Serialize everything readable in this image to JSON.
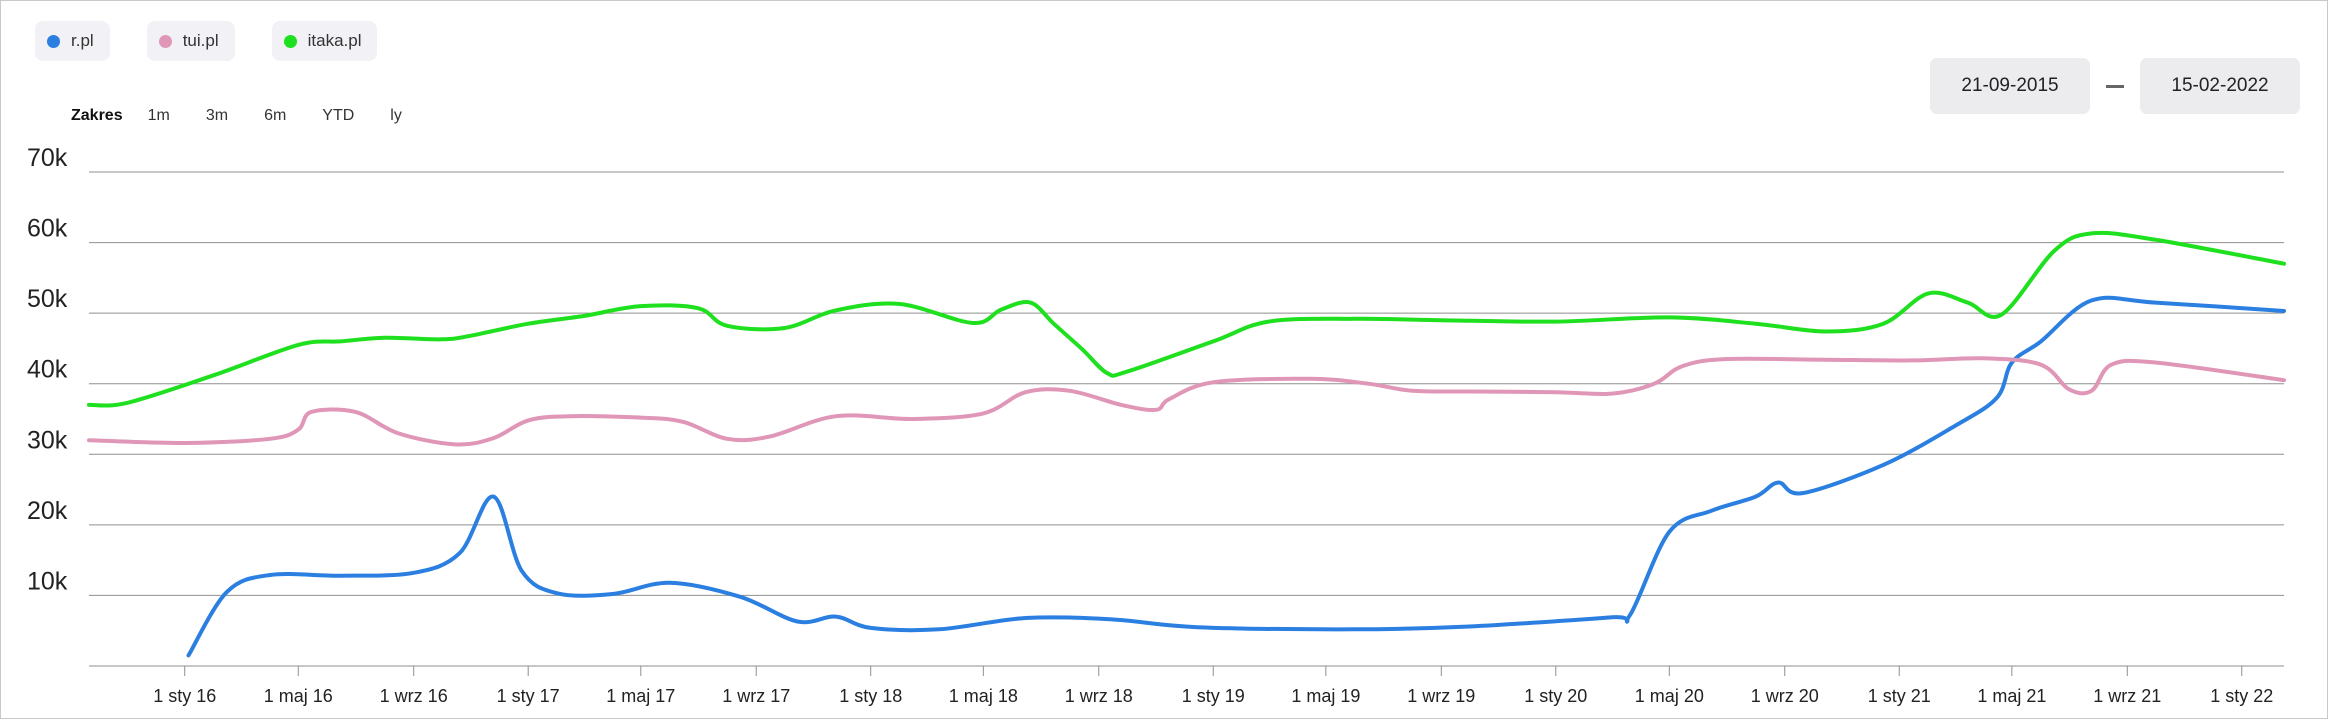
{
  "legend": [
    {
      "label": "r.pl",
      "color": "#2a7fe0"
    },
    {
      "label": "tui.pl",
      "color": "#e096b6"
    },
    {
      "label": "itaka.pl",
      "color": "#1ee01e"
    }
  ],
  "range_selector": {
    "label": "Zakres",
    "buttons": [
      "1m",
      "3m",
      "6m",
      "YTD",
      "ly"
    ]
  },
  "date_range": {
    "from": "21-09-2015",
    "to": "15-02-2022"
  },
  "chart_data": {
    "type": "line",
    "ylim": [
      0,
      70000
    ],
    "xlim": [
      "2015-09-21",
      "2022-02-15"
    ],
    "y_ticks": [
      {
        "value": 10000,
        "label": "10k"
      },
      {
        "value": 20000,
        "label": "20k"
      },
      {
        "value": 30000,
        "label": "30k"
      },
      {
        "value": 40000,
        "label": "40k"
      },
      {
        "value": 50000,
        "label": "50k"
      },
      {
        "value": 60000,
        "label": "60k"
      },
      {
        "value": 70000,
        "label": "70k"
      }
    ],
    "x_ticks": [
      {
        "date": "2016-01-01",
        "label": "1 sty 16"
      },
      {
        "date": "2016-05-01",
        "label": "1 maj 16"
      },
      {
        "date": "2016-09-01",
        "label": "1 wrz 16"
      },
      {
        "date": "2017-01-01",
        "label": "1 sty 17"
      },
      {
        "date": "2017-05-01",
        "label": "1 maj  17"
      },
      {
        "date": "2017-09-01",
        "label": "1 wrz  17"
      },
      {
        "date": "2018-01-01",
        "label": "1 sty  18"
      },
      {
        "date": "2018-05-01",
        "label": "1 maj  18"
      },
      {
        "date": "2018-09-01",
        "label": "1 wrz  18"
      },
      {
        "date": "2019-01-01",
        "label": "1 sty  19"
      },
      {
        "date": "2019-05-01",
        "label": "1 maj  19"
      },
      {
        "date": "2019-09-01",
        "label": "1 wrz  19"
      },
      {
        "date": "2020-01-01",
        "label": "1 sty  20"
      },
      {
        "date": "2020-05-01",
        "label": "1 maj  20"
      },
      {
        "date": "2020-09-01",
        "label": "1 wrz  20"
      },
      {
        "date": "2021-01-01",
        "label": "1 sty  21"
      },
      {
        "date": "2021-05-01",
        "label": "1 maj  21"
      },
      {
        "date": "2021-09-01",
        "label": "1 wrz  21"
      },
      {
        "date": "2022-01-01",
        "label": "1 sty  22"
      }
    ],
    "series": [
      {
        "name": "r.pl",
        "color": "#2a7fe0",
        "points": [
          [
            "2016-01-05",
            1500
          ],
          [
            "2016-02-15",
            10500
          ],
          [
            "2016-04-01",
            12900
          ],
          [
            "2016-06-15",
            12800
          ],
          [
            "2016-09-01",
            13200
          ],
          [
            "2016-10-20",
            16000
          ],
          [
            "2016-11-25",
            24000
          ],
          [
            "2016-12-25",
            13500
          ],
          [
            "2017-02-01",
            10300
          ],
          [
            "2017-04-01",
            10200
          ],
          [
            "2017-06-01",
            11800
          ],
          [
            "2017-08-15",
            9800
          ],
          [
            "2017-10-15",
            6300
          ],
          [
            "2017-11-25",
            7000
          ],
          [
            "2018-01-01",
            5400
          ],
          [
            "2018-03-15",
            5200
          ],
          [
            "2018-06-15",
            6800
          ],
          [
            "2018-09-15",
            6600
          ],
          [
            "2018-12-15",
            5500
          ],
          [
            "2019-06-01",
            5200
          ],
          [
            "2019-10-01",
            5600
          ],
          [
            "2020-03-01",
            6900
          ],
          [
            "2020-03-20",
            7200
          ],
          [
            "2020-05-01",
            19000
          ],
          [
            "2020-06-15",
            22000
          ],
          [
            "2020-08-01",
            24000
          ],
          [
            "2020-08-25",
            26000
          ],
          [
            "2020-09-20",
            24500
          ],
          [
            "2020-12-15",
            28500
          ],
          [
            "2021-03-01",
            34000
          ],
          [
            "2021-04-15",
            38000
          ],
          [
            "2021-05-01",
            43000
          ],
          [
            "2021-06-01",
            46000
          ],
          [
            "2021-07-25",
            51800
          ],
          [
            "2021-10-01",
            51500
          ],
          [
            "2022-02-15",
            50300
          ]
        ]
      },
      {
        "name": "tui.pl",
        "color": "#e096b6",
        "points": [
          [
            "2015-09-21",
            32000
          ],
          [
            "2016-01-01",
            31600
          ],
          [
            "2016-04-01",
            32200
          ],
          [
            "2016-05-01",
            33500
          ],
          [
            "2016-05-15",
            36000
          ],
          [
            "2016-07-01",
            36000
          ],
          [
            "2016-08-15",
            33000
          ],
          [
            "2016-10-15",
            31400
          ],
          [
            "2016-11-25",
            32300
          ],
          [
            "2017-01-01",
            34800
          ],
          [
            "2017-02-15",
            35400
          ],
          [
            "2017-05-01",
            35200
          ],
          [
            "2017-06-15",
            34600
          ],
          [
            "2017-08-01",
            32200
          ],
          [
            "2017-09-15",
            32500
          ],
          [
            "2017-11-25",
            35400
          ],
          [
            "2018-02-15",
            35000
          ],
          [
            "2018-05-01",
            35800
          ],
          [
            "2018-06-15",
            38800
          ],
          [
            "2018-08-01",
            39000
          ],
          [
            "2018-09-25",
            37000
          ],
          [
            "2018-11-01",
            36300
          ],
          [
            "2018-11-15",
            37800
          ],
          [
            "2019-01-01",
            40200
          ],
          [
            "2019-04-15",
            40700
          ],
          [
            "2019-06-15",
            40000
          ],
          [
            "2019-08-01",
            39000
          ],
          [
            "2019-10-01",
            38900
          ],
          [
            "2020-01-01",
            38800
          ],
          [
            "2020-03-01",
            38600
          ],
          [
            "2020-04-15",
            40000
          ],
          [
            "2020-05-15",
            42500
          ],
          [
            "2020-07-01",
            43500
          ],
          [
            "2020-10-15",
            43400
          ],
          [
            "2021-01-15",
            43300
          ],
          [
            "2021-04-01",
            43600
          ],
          [
            "2021-06-01",
            42700
          ],
          [
            "2021-07-01",
            39200
          ],
          [
            "2021-07-25",
            39000
          ],
          [
            "2021-08-15",
            42700
          ],
          [
            "2021-10-01",
            43000
          ],
          [
            "2022-02-15",
            40500
          ]
        ]
      },
      {
        "name": "itaka.pl",
        "color": "#1ee01e",
        "points": [
          [
            "2015-09-21",
            37000
          ],
          [
            "2015-11-01",
            37300
          ],
          [
            "2016-02-01",
            41200
          ],
          [
            "2016-05-01",
            45500
          ],
          [
            "2016-06-15",
            46000
          ],
          [
            "2016-08-01",
            46500
          ],
          [
            "2016-10-01",
            46300
          ],
          [
            "2016-11-01",
            46800
          ],
          [
            "2017-01-01",
            48500
          ],
          [
            "2017-03-01",
            49600
          ],
          [
            "2017-05-01",
            51000
          ],
          [
            "2017-07-01",
            50700
          ],
          [
            "2017-08-01",
            48200
          ],
          [
            "2017-10-01",
            47900
          ],
          [
            "2017-11-25",
            50400
          ],
          [
            "2018-02-01",
            51300
          ],
          [
            "2018-04-20",
            48600
          ],
          [
            "2018-05-20",
            50500
          ],
          [
            "2018-06-20",
            51500
          ],
          [
            "2018-07-15",
            48500
          ],
          [
            "2018-08-15",
            44800
          ],
          [
            "2018-09-10",
            41500
          ],
          [
            "2018-10-01",
            41700
          ],
          [
            "2019-01-01",
            46000
          ],
          [
            "2019-03-01",
            48800
          ],
          [
            "2019-06-01",
            49200
          ],
          [
            "2019-09-01",
            49000
          ],
          [
            "2020-01-01",
            48800
          ],
          [
            "2020-05-01",
            49400
          ],
          [
            "2020-08-01",
            48500
          ],
          [
            "2020-10-15",
            47400
          ],
          [
            "2020-12-15",
            48500
          ],
          [
            "2021-02-01",
            52800
          ],
          [
            "2021-03-15",
            51500
          ],
          [
            "2021-04-20",
            49800
          ],
          [
            "2021-06-15",
            58800
          ],
          [
            "2021-07-25",
            61300
          ],
          [
            "2021-10-01",
            60400
          ],
          [
            "2022-02-15",
            57000
          ]
        ]
      }
    ]
  }
}
